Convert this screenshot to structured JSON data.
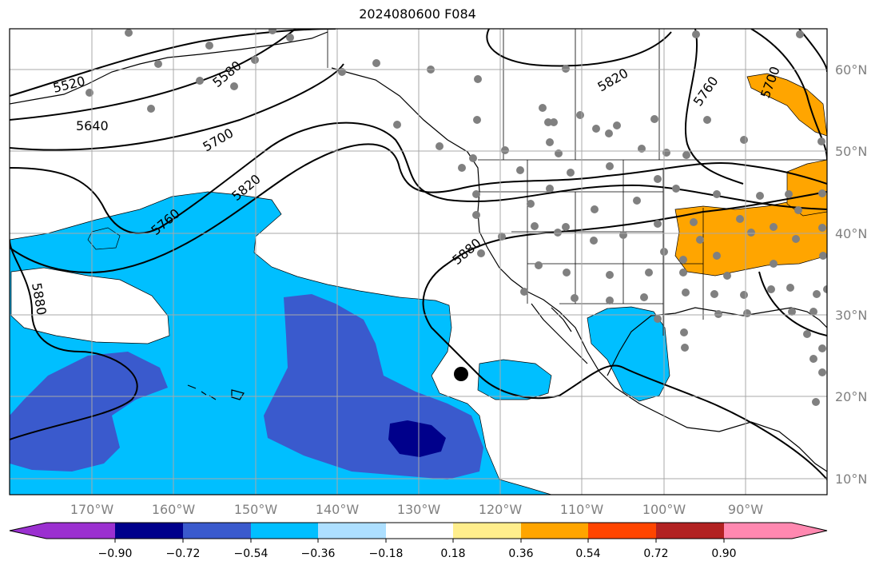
{
  "title": "2024080600 F084",
  "map": {
    "lon_ticks": [
      "170°W",
      "160°W",
      "150°W",
      "140°W",
      "130°W",
      "120°W",
      "110°W",
      "100°W",
      "90°W"
    ],
    "lat_ticks": [
      "60°N",
      "50°N",
      "40°N",
      "30°N",
      "20°N",
      "10°N"
    ],
    "contour_labels": [
      "5520",
      "5580",
      "5640",
      "5700",
      "5760",
      "5820",
      "5880",
      "5820",
      "5760",
      "5700",
      "5880"
    ],
    "grid": true,
    "marker": "storm-center"
  },
  "colorbar": {
    "ticks": [
      "−0.90",
      "−0.72",
      "−0.54",
      "−0.36",
      "−0.18",
      "0.18",
      "0.36",
      "0.54",
      "0.72",
      "0.90"
    ],
    "colors": [
      "#9b30d0",
      "#00008b",
      "#3a5acd",
      "#00bfff",
      "#addfff",
      "#ffffff",
      "#ffee8c",
      "#ffa500",
      "#ff4500",
      "#b22222",
      "#ff88b0"
    ]
  }
}
